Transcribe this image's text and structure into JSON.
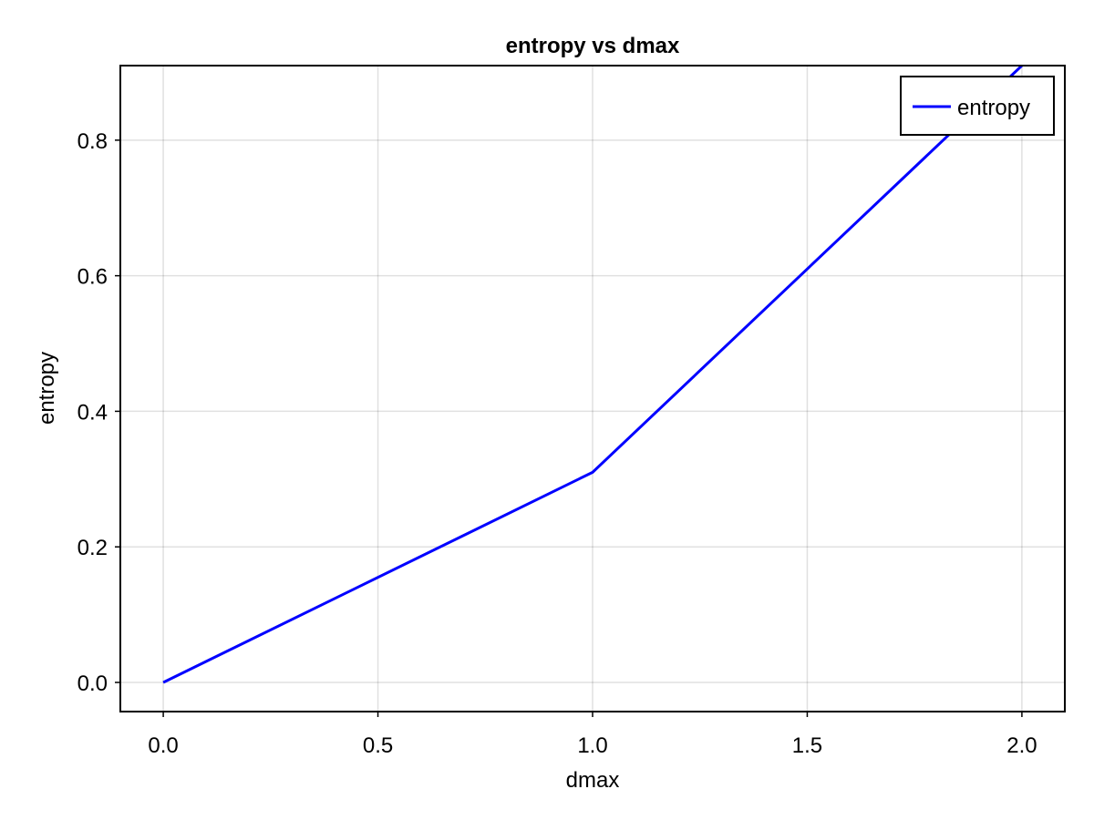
{
  "chart_data": {
    "type": "line",
    "title": "entropy vs dmax",
    "xlabel": "dmax",
    "ylabel": "entropy",
    "xlim": [
      -0.1,
      2.1
    ],
    "ylim": [
      -0.043,
      0.91
    ],
    "xticks": [
      0.0,
      0.5,
      1.0,
      1.5,
      2.0
    ],
    "xtick_labels": [
      "0.0",
      "0.5",
      "1.0",
      "1.5",
      "2.0"
    ],
    "yticks": [
      0.0,
      0.2,
      0.4,
      0.6,
      0.8
    ],
    "ytick_labels": [
      "0.0",
      "0.2",
      "0.4",
      "0.6",
      "0.8"
    ],
    "grid": true,
    "legend_position": "top-right",
    "series": [
      {
        "name": "entropy",
        "color": "#0000ff",
        "x": [
          0.0,
          1.0,
          2.0
        ],
        "y": [
          0.0,
          0.31,
          0.91
        ]
      }
    ]
  }
}
